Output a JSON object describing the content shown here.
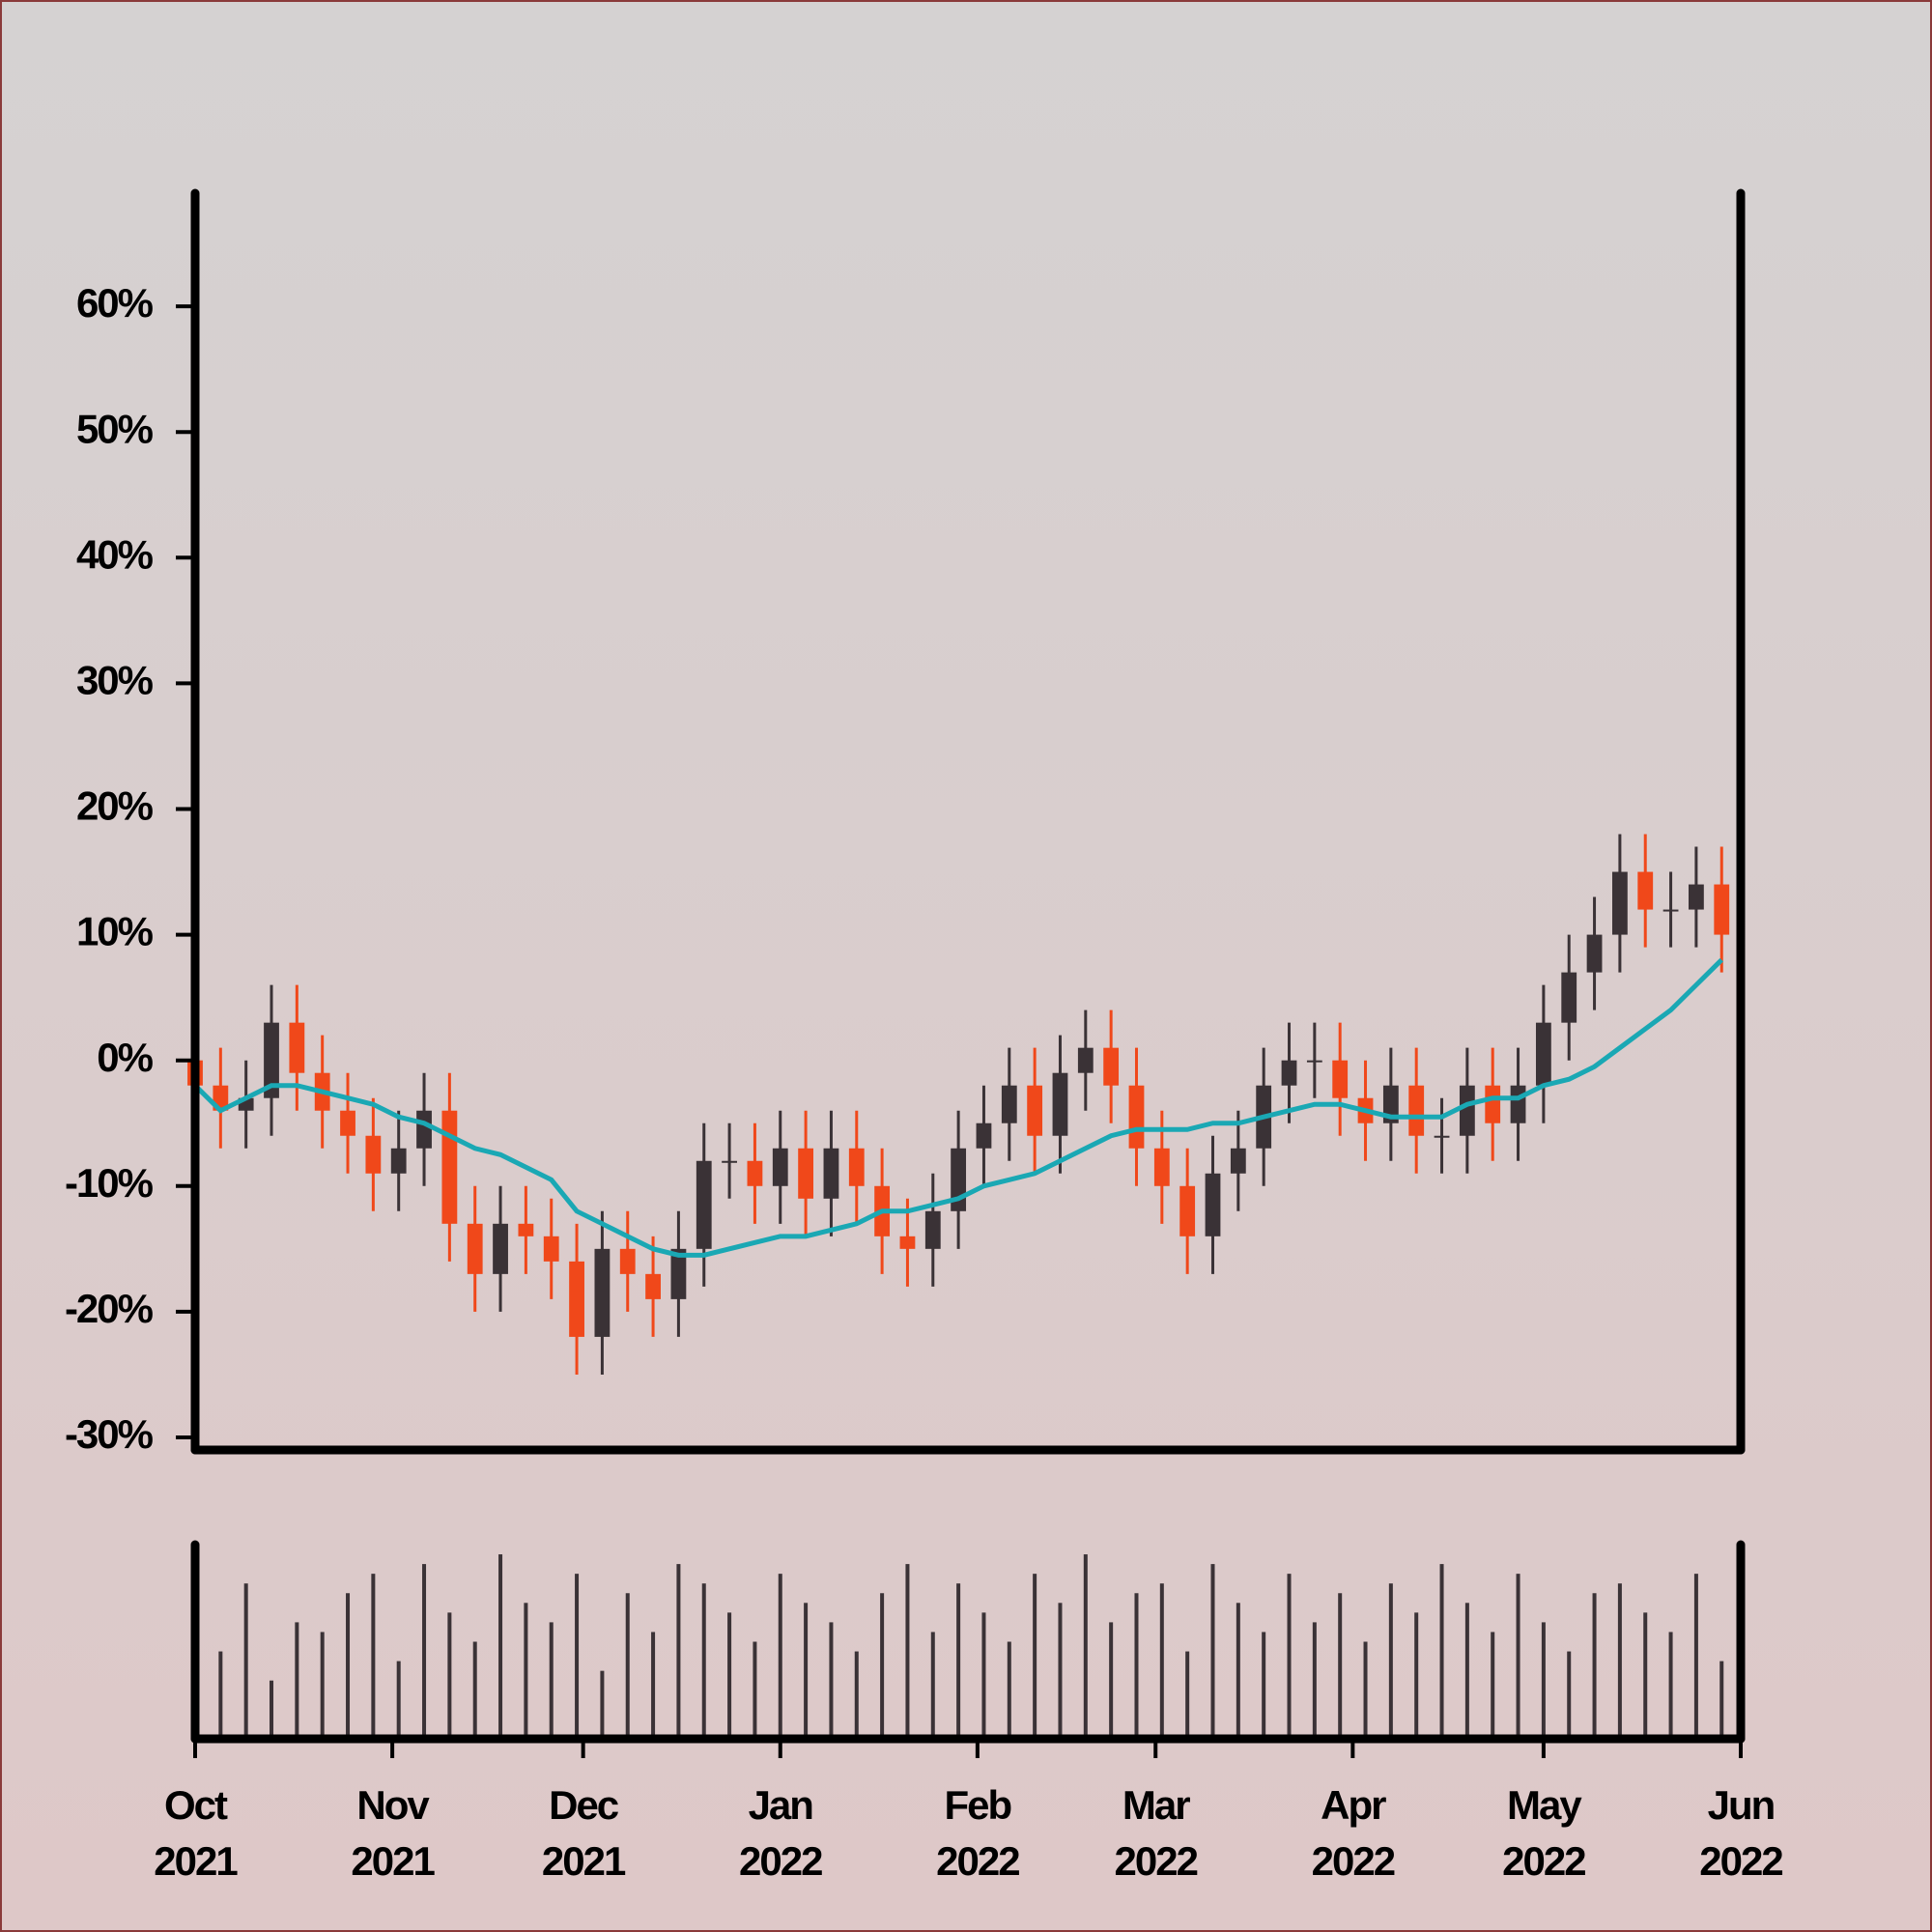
{
  "chart_data": {
    "type": "candlestick",
    "x": [
      "2021-10-01",
      "2021-10-05",
      "2021-10-09",
      "2021-10-13",
      "2021-10-17",
      "2021-10-21",
      "2021-10-25",
      "2021-10-29",
      "2021-11-02",
      "2021-11-06",
      "2021-11-10",
      "2021-11-14",
      "2021-11-18",
      "2021-11-22",
      "2021-11-26",
      "2021-11-30",
      "2021-12-04",
      "2021-12-08",
      "2021-12-12",
      "2021-12-16",
      "2021-12-20",
      "2021-12-24",
      "2021-12-28",
      "2022-01-01",
      "2022-01-05",
      "2022-01-09",
      "2022-01-13",
      "2022-01-17",
      "2022-01-21",
      "2022-01-25",
      "2022-01-29",
      "2022-02-02",
      "2022-02-06",
      "2022-02-10",
      "2022-02-14",
      "2022-02-18",
      "2022-02-22",
      "2022-02-26",
      "2022-03-02",
      "2022-03-06",
      "2022-03-10",
      "2022-03-14",
      "2022-03-18",
      "2022-03-22",
      "2022-03-26",
      "2022-03-30",
      "2022-04-03",
      "2022-04-07",
      "2022-04-11",
      "2022-04-15",
      "2022-04-19",
      "2022-04-23",
      "2022-04-27",
      "2022-05-01",
      "2022-05-05",
      "2022-05-09",
      "2022-05-13",
      "2022-05-17",
      "2022-05-21",
      "2022-05-25",
      "2022-05-29"
    ],
    "open": [
      0,
      -2,
      -4,
      -3,
      3,
      -1,
      -4,
      -6,
      -9,
      -7,
      -4,
      -13,
      -17,
      -13,
      -14,
      -16,
      -22,
      -15,
      -17,
      -19,
      -15,
      -8,
      -8,
      -10,
      -7,
      -11,
      -7,
      -10,
      -14,
      -15,
      -12,
      -7,
      -5,
      -2,
      -6,
      -1,
      1,
      -2,
      -7,
      -10,
      -14,
      -9,
      -7,
      -2,
      0,
      0,
      -3,
      -5,
      -2,
      -6,
      -6,
      -2,
      -5,
      -2,
      3,
      7,
      10,
      15,
      12,
      12,
      14
    ],
    "high": [
      3,
      1,
      0,
      6,
      6,
      2,
      -1,
      -3,
      -4,
      -1,
      -1,
      -10,
      -10,
      -10,
      -11,
      -13,
      -12,
      -12,
      -14,
      -12,
      -5,
      -5,
      -5,
      -4,
      -4,
      -4,
      -4,
      -7,
      -11,
      -9,
      -4,
      -2,
      1,
      1,
      2,
      4,
      4,
      1,
      -4,
      -7,
      -6,
      -4,
      1,
      3,
      3,
      3,
      0,
      1,
      1,
      -3,
      1,
      1,
      1,
      6,
      10,
      13,
      18,
      18,
      15,
      17,
      17
    ],
    "low": [
      -5,
      -7,
      -7,
      -6,
      -4,
      -7,
      -9,
      -12,
      -12,
      -10,
      -16,
      -20,
      -20,
      -17,
      -19,
      -25,
      -25,
      -20,
      -22,
      -22,
      -18,
      -11,
      -13,
      -13,
      -14,
      -14,
      -13,
      -17,
      -18,
      -18,
      -15,
      -10,
      -8,
      -9,
      -9,
      -4,
      -5,
      -10,
      -13,
      -17,
      -17,
      -12,
      -10,
      -5,
      -3,
      -6,
      -8,
      -8,
      -9,
      -9,
      -9,
      -8,
      -8,
      -5,
      0,
      4,
      7,
      9,
      9,
      9,
      7
    ],
    "close": [
      -2,
      -4,
      -3,
      3,
      -1,
      -4,
      -6,
      -9,
      -7,
      -4,
      -13,
      -17,
      -13,
      -14,
      -16,
      -22,
      -15,
      -17,
      -19,
      -15,
      -8,
      -8,
      -10,
      -7,
      -11,
      -7,
      -10,
      -14,
      -15,
      -12,
      -7,
      -5,
      -2,
      -6,
      -1,
      1,
      -2,
      -7,
      -10,
      -14,
      -9,
      -7,
      -2,
      0,
      0,
      -3,
      -5,
      -2,
      -6,
      -6,
      -2,
      -5,
      -2,
      3,
      7,
      10,
      15,
      12,
      12,
      14,
      10
    ],
    "moving_average": [
      -2,
      -4,
      -3,
      -2,
      -2,
      -2.5,
      -3,
      -3.5,
      -4.5,
      -5,
      -6,
      -7,
      -7.5,
      -8.5,
      -9.5,
      -12,
      -13,
      -14,
      -15,
      -15.5,
      -15.5,
      -15,
      -14.5,
      -14,
      -14,
      -13.5,
      -13,
      -12,
      -12,
      -11.5,
      -11,
      -10,
      -9.5,
      -9,
      -8,
      -7,
      -6,
      -5.5,
      -5.5,
      -5.5,
      -5,
      -5,
      -4.5,
      -4,
      -3.5,
      -3.5,
      -4,
      -4.5,
      -4.5,
      -4.5,
      -3.5,
      -3,
      -3,
      -2,
      -1.5,
      -0.5,
      1,
      2.5,
      4,
      6,
      8
    ],
    "volume": [
      70,
      45,
      80,
      30,
      60,
      55,
      75,
      85,
      40,
      90,
      65,
      50,
      95,
      70,
      60,
      85,
      35,
      75,
      55,
      90,
      80,
      65,
      50,
      85,
      70,
      60,
      45,
      75,
      90,
      55,
      80,
      65,
      50,
      85,
      70,
      95,
      60,
      75,
      80,
      45,
      90,
      70,
      55,
      85,
      60,
      75,
      50,
      80,
      65,
      90,
      70,
      55,
      85,
      60,
      45,
      75,
      80,
      65,
      55,
      85,
      40
    ],
    "up_color": "#3a3236",
    "down_color": "#f0481a",
    "ma_color": "#1aa8b4",
    "xlim": [
      "2021-10-01",
      "2022-06-01"
    ],
    "xticks": [
      {
        "value": "2021-10-01",
        "label": "Oct\n2021"
      },
      {
        "value": "2021-11-01",
        "label": "Nov\n2021"
      },
      {
        "value": "2021-12-01",
        "label": "Dec\n2021"
      },
      {
        "value": "2022-01-01",
        "label": "Jan\n2022"
      },
      {
        "value": "2022-02-01",
        "label": "Feb\n2022"
      },
      {
        "value": "2022-03-01",
        "label": "Mar\n2022"
      },
      {
        "value": "2022-04-01",
        "label": "Apr\n2022"
      },
      {
        "value": "2022-05-01",
        "label": "May\n2022"
      },
      {
        "value": "2022-06-01",
        "label": "Jun\n2022"
      }
    ],
    "ylim": [
      -31,
      69
    ],
    "yticks": [
      {
        "value": -30,
        "label": "-30%"
      },
      {
        "value": -20,
        "label": "-20%"
      },
      {
        "value": -10,
        "label": "-10%"
      },
      {
        "value": 0,
        "label": "0%"
      },
      {
        "value": 10,
        "label": "10%"
      },
      {
        "value": 20,
        "label": "20%"
      },
      {
        "value": 30,
        "label": "30%"
      },
      {
        "value": 40,
        "label": "40%"
      },
      {
        "value": 50,
        "label": "50%"
      },
      {
        "value": 60,
        "label": "60%"
      }
    ],
    "volume_ylim": [
      0,
      100
    ]
  }
}
